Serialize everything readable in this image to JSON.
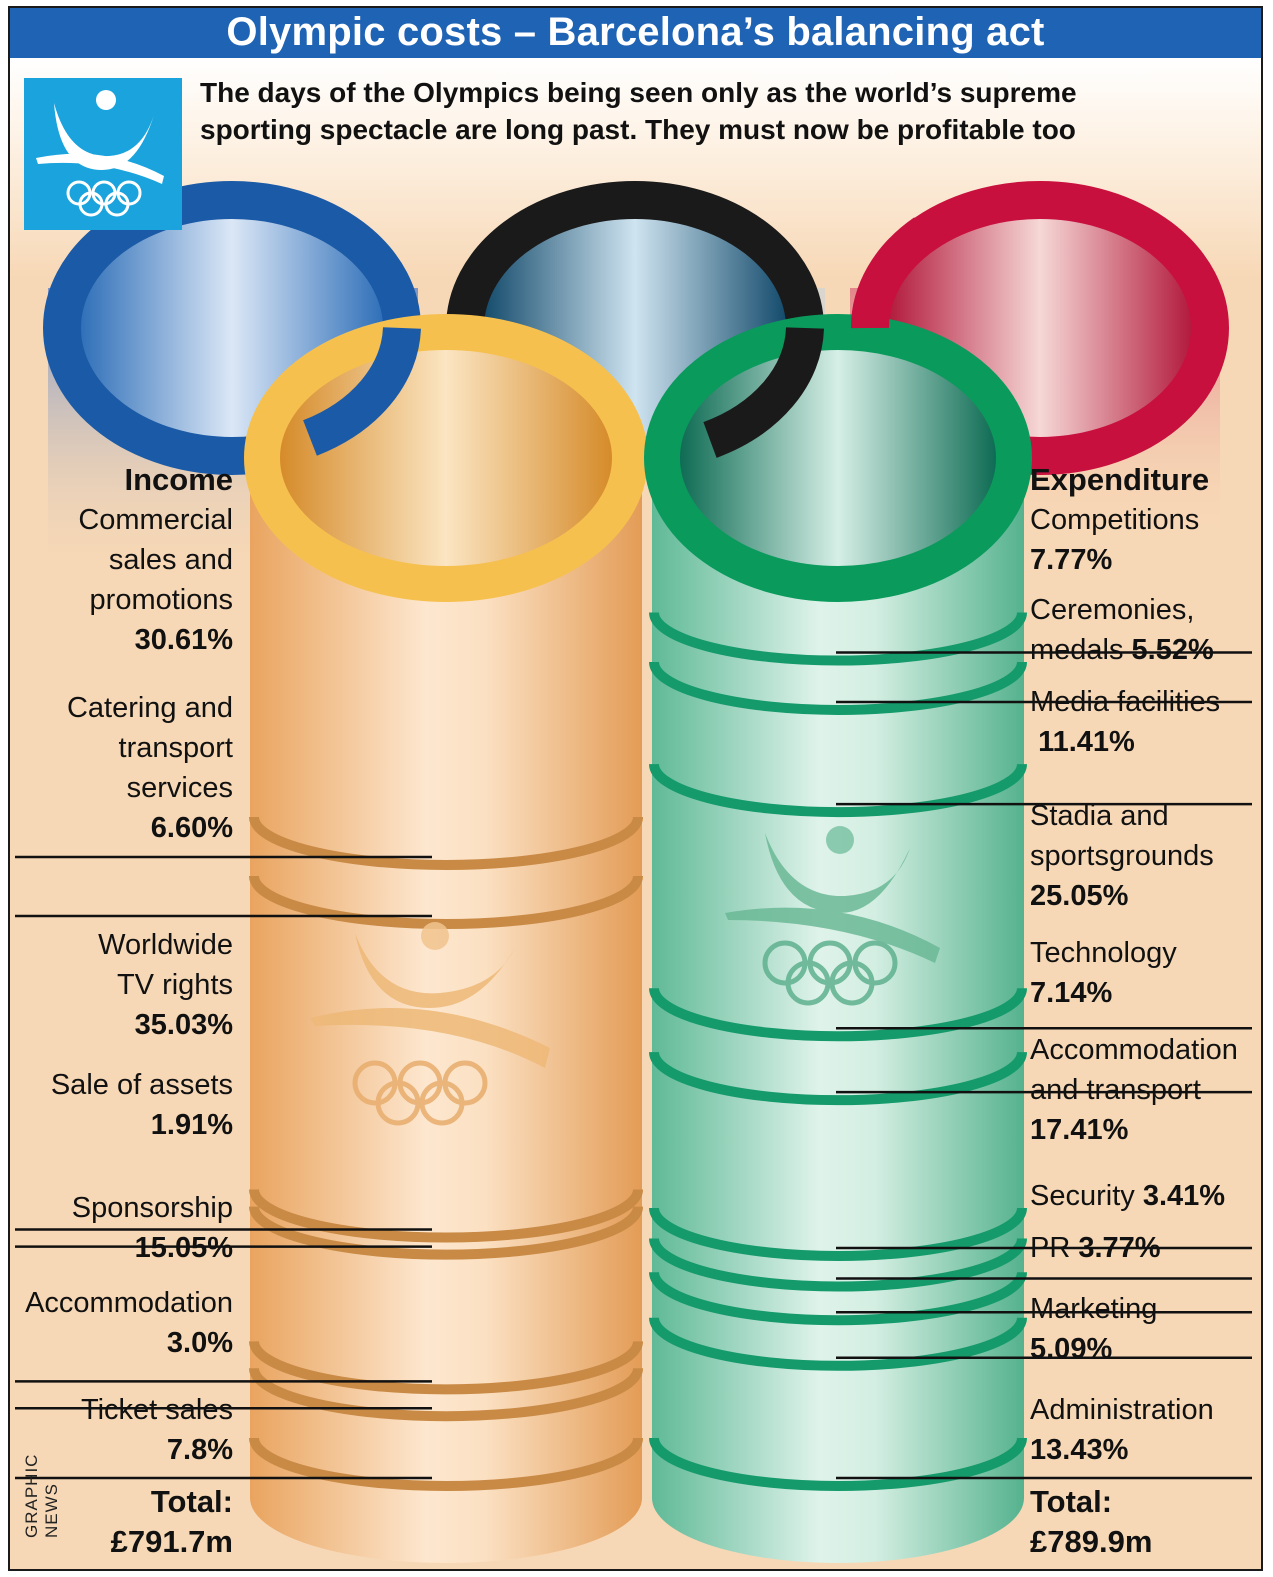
{
  "title": "Olympic costs – Barcelona’s balancing act",
  "subtitle_line1": "The days of the Olympics being seen only as the world’s supreme",
  "subtitle_line2": "sporting spectacle are long past. They must now be profitable too",
  "credit": "GRAPHIC NEWS",
  "colors": {
    "title_bar": "#1f63b4",
    "income_column": "#f2b57a",
    "expenditure_column": "#8fd0b4",
    "ring_blue": "#1b5aa6",
    "ring_yellow": "#f6c04f",
    "ring_black": "#1a1a1a",
    "ring_green": "#0a9a5c",
    "ring_red": "#c8103e",
    "logo_bg": "#1aa3dc"
  },
  "icons": [
    "barcelona-92-logo-icon",
    "olympic-rings-icon"
  ],
  "chart_data": [
    {
      "type": "stacked-column",
      "heading": "Income",
      "unit": "%",
      "categories": [
        "Commercial sales and promotions",
        "Catering and transport services",
        "Worldwide TV rights",
        "Sale of assets",
        "Sponsorship",
        "Accommodation",
        "Ticket sales"
      ],
      "values": [
        30.61,
        6.6,
        35.03,
        1.91,
        15.05,
        3.0,
        7.8
      ],
      "value_labels": [
        "30.61%",
        "6.60%",
        "35.03%",
        "1.91%",
        "15.05%",
        "3.0%",
        "7.8%"
      ],
      "total_label": "Total:",
      "total_value": "£791.7m"
    },
    {
      "type": "stacked-column",
      "heading": "Expenditure",
      "unit": "%",
      "categories": [
        "Competitions",
        "Ceremonies, medals",
        "Media facilities",
        "Stadia and sportsgrounds",
        "Technology",
        "Accommodation and transport",
        "Security",
        "PR",
        "Marketing",
        "Administration"
      ],
      "values": [
        7.77,
        5.52,
        11.41,
        25.05,
        7.14,
        17.41,
        3.41,
        3.77,
        5.09,
        13.43
      ],
      "value_labels": [
        "7.77%",
        "5.52%",
        "11.41%",
        "25.05%",
        "7.14%",
        "17.41%",
        "3.41%",
        "3.77%",
        "5.09%",
        "13.43%"
      ],
      "total_label": "Total:",
      "total_value": "£789.9m"
    }
  ]
}
